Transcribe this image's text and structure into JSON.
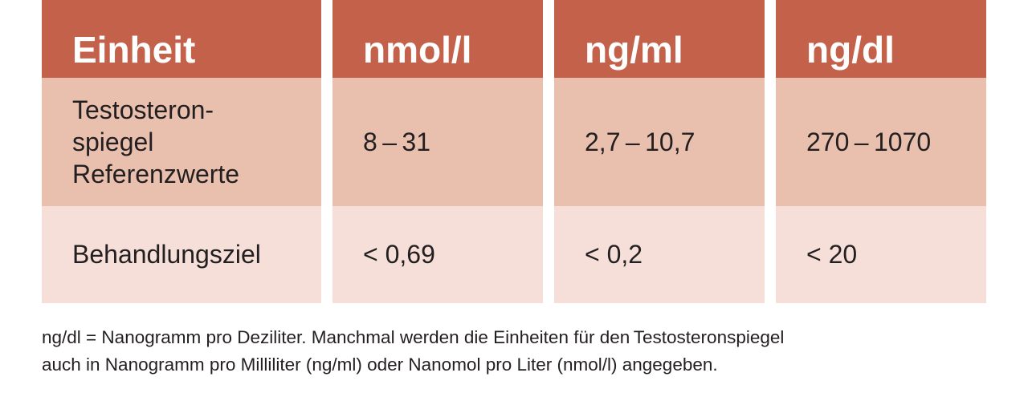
{
  "table": {
    "header": [
      "Einheit",
      "nmol/l",
      "ng/ml",
      "ng/dl"
    ],
    "rows": [
      [
        [
          "Testosteron-",
          "spiegel",
          "Referenzwerte"
        ],
        "8 – 31",
        "2,7 – 10,7",
        "270 – 1070"
      ],
      [
        "Behandlungsziel",
        "< 0,69",
        "< 0,2",
        "< 20"
      ]
    ]
  },
  "footnote": [
    "ng/dl = Nanogramm pro Deziliter. Manchmal werden die Einheiten für den Testosteronspiegel",
    "auch in Nanogramm pro Milliliter (ng/ml) oder Nanomol pro Liter (nmol/l) angegeben."
  ]
}
